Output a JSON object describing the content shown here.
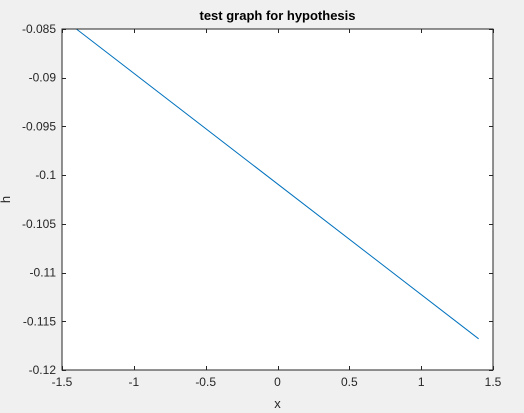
{
  "chart_data": {
    "type": "line",
    "title": "test graph for hypothesis",
    "xlabel": "x",
    "ylabel": "h",
    "xlim": [
      -1.5,
      1.5
    ],
    "ylim": [
      -0.12,
      -0.085
    ],
    "xticks": [
      -1.5,
      -1,
      -0.5,
      0,
      0.5,
      1,
      1.5
    ],
    "xtick_labels": [
      "-1.5",
      "-1",
      "-0.5",
      "0",
      "0.5",
      "1",
      "1.5"
    ],
    "yticks": [
      -0.12,
      -0.115,
      -0.11,
      -0.105,
      -0.1,
      -0.095,
      -0.09,
      -0.085
    ],
    "ytick_labels": [
      "-0.12",
      "-0.115",
      "-0.11",
      "-0.105",
      "-0.1",
      "-0.095",
      "-0.09",
      "-0.085"
    ],
    "grid": false,
    "series": [
      {
        "x": [
          -1.4,
          1.4
        ],
        "values": [
          -0.085,
          -0.1168
        ]
      }
    ],
    "colors": {
      "line": "#0072bd",
      "axes": "#262626",
      "plot_background": "#ffffff",
      "figure_background": "#f0f0f0"
    }
  }
}
